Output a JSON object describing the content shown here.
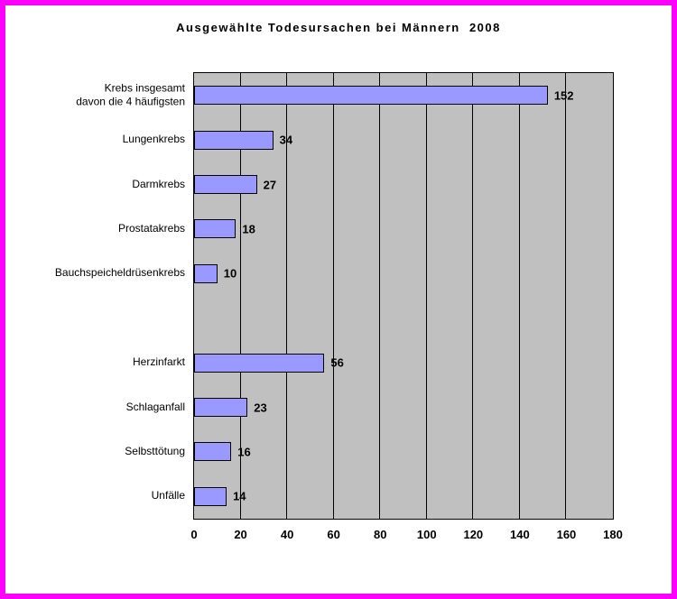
{
  "chart_data": {
    "type": "bar",
    "orientation": "horizontal",
    "title": "Ausgewählte Todesursachen bei Männern  2008",
    "categories": [
      "Krebs insgesamt\ndavon die 4 häufigsten",
      "Lungenkrebs",
      "Darmkrebs",
      "Prostatakrebs",
      "Bauchspeicheldrüsenkrebs",
      "",
      "Herzinfarkt",
      "Schlaganfall",
      "Selbsttötung",
      "Unfälle"
    ],
    "values": [
      152,
      34,
      27,
      18,
      10,
      null,
      56,
      23,
      16,
      14
    ],
    "xlim": [
      0,
      180
    ],
    "x_ticks": [
      0,
      20,
      40,
      60,
      80,
      100,
      120,
      140,
      160,
      180
    ],
    "grid": true,
    "legend": false,
    "colors": {
      "bar_fill": "#9999ff",
      "bar_border": "#000000",
      "plot_bg": "#c0c0c0",
      "gridline": "#000000",
      "frame_border": "#ff00ff",
      "background": "#ffffff"
    }
  }
}
